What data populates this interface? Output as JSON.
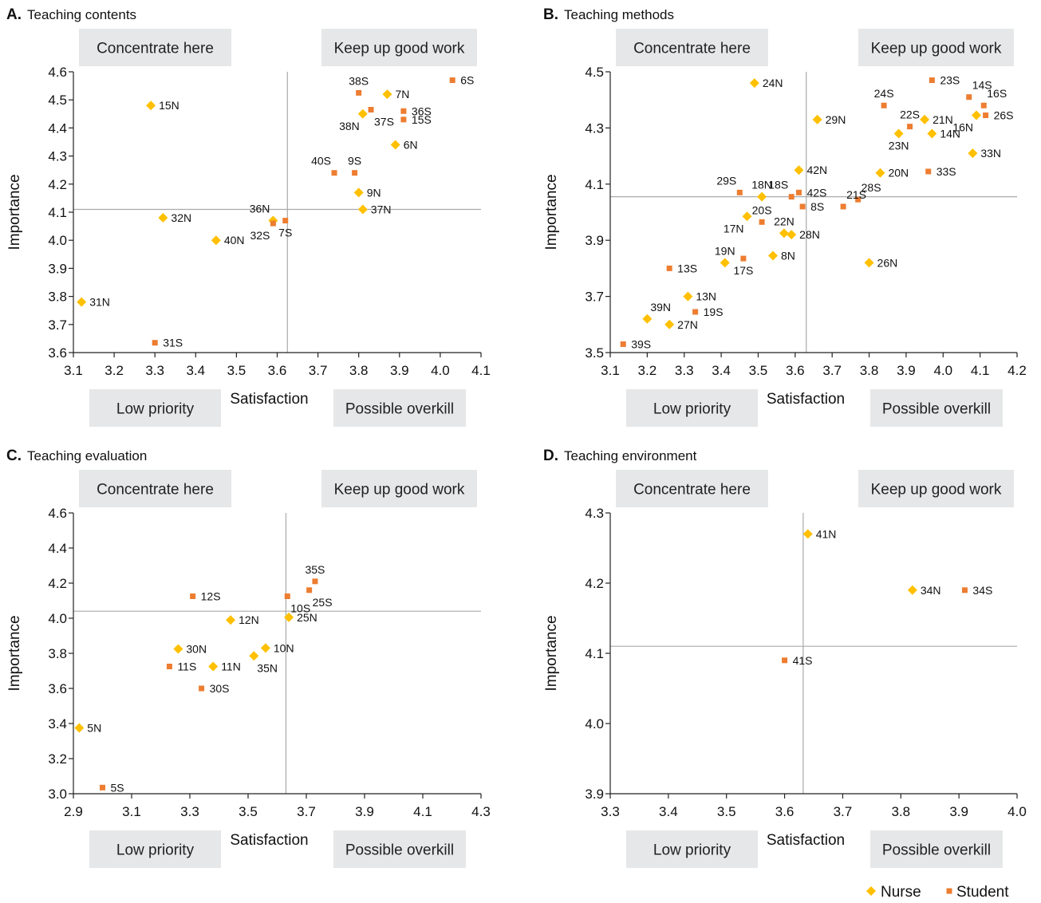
{
  "colors": {
    "nurse": "#FFC000",
    "student": "#ED7D31",
    "quad_bg": "#E6E7E8",
    "guide": "#AAAAAA",
    "axis": "#222222"
  },
  "quadrant_labels": {
    "concentrate": "Concentrate here",
    "keep": "Keep up good work",
    "low": "Low priority",
    "overkill": "Possible overkill"
  },
  "legend": [
    {
      "name": "Nurse",
      "marker": "diamond",
      "color": "#FFC000"
    },
    {
      "name": "Student",
      "marker": "square",
      "color": "#ED7D31"
    }
  ],
  "chart_data": [
    {
      "type": "scatter",
      "letter": "A.",
      "title": "Teaching contents",
      "xlabel": "Satisfaction",
      "ylabel": "Importance",
      "xlim": [
        3.1,
        4.1
      ],
      "ylim": [
        3.6,
        4.6
      ],
      "xticks": [
        "3.1",
        "3.2",
        "3.3",
        "3.4",
        "3.5",
        "3.6",
        "3.7",
        "3.8",
        "3.9",
        "4.0",
        "4.1"
      ],
      "yticks": [
        "3.6",
        "3.7",
        "3.8",
        "3.9",
        "4.0",
        "4.1",
        "4.2",
        "4.3",
        "4.4",
        "4.5",
        "4.6"
      ],
      "ref_x": 3.625,
      "ref_y": 4.11,
      "grid": false,
      "points": [
        {
          "label": "15N",
          "group": "Nurse",
          "x": 3.29,
          "y": 4.48,
          "lp": "r"
        },
        {
          "label": "32N",
          "group": "Nurse",
          "x": 3.32,
          "y": 4.08,
          "lp": "r"
        },
        {
          "label": "40N",
          "group": "Nurse",
          "x": 3.45,
          "y": 4.0,
          "lp": "r"
        },
        {
          "label": "31N",
          "group": "Nurse",
          "x": 3.12,
          "y": 3.78,
          "lp": "r"
        },
        {
          "label": "31S",
          "group": "Student",
          "x": 3.3,
          "y": 3.635,
          "lp": "r"
        },
        {
          "label": "36N",
          "group": "Nurse",
          "x": 3.59,
          "y": 4.07,
          "lp": "tl"
        },
        {
          "label": "32S",
          "group": "Student",
          "x": 3.59,
          "y": 4.06,
          "lp": "bl"
        },
        {
          "label": "7S",
          "group": "Student",
          "x": 3.62,
          "y": 4.07,
          "lp": "b"
        },
        {
          "label": "38S",
          "group": "Student",
          "x": 3.8,
          "y": 4.525,
          "lp": "t"
        },
        {
          "label": "7N",
          "group": "Nurse",
          "x": 3.87,
          "y": 4.52,
          "lp": "r"
        },
        {
          "label": "6S",
          "group": "Student",
          "x": 4.03,
          "y": 4.57,
          "lp": "r"
        },
        {
          "label": "37S",
          "group": "Student",
          "x": 3.83,
          "y": 4.465,
          "lp": "br"
        },
        {
          "label": "38N",
          "group": "Nurse",
          "x": 3.81,
          "y": 4.45,
          "lp": "bl"
        },
        {
          "label": "36S",
          "group": "Student",
          "x": 3.91,
          "y": 4.46,
          "lp": "r"
        },
        {
          "label": "15S",
          "group": "Student",
          "x": 3.91,
          "y": 4.43,
          "lp": "r"
        },
        {
          "label": "6N",
          "group": "Nurse",
          "x": 3.89,
          "y": 4.34,
          "lp": "r"
        },
        {
          "label": "40S",
          "group": "Student",
          "x": 3.74,
          "y": 4.24,
          "lp": "tl"
        },
        {
          "label": "9S",
          "group": "Student",
          "x": 3.79,
          "y": 4.24,
          "lp": "t"
        },
        {
          "label": "9N",
          "group": "Nurse",
          "x": 3.8,
          "y": 4.17,
          "lp": "r"
        },
        {
          "label": "37N",
          "group": "Nurse",
          "x": 3.81,
          "y": 4.11,
          "lp": "r"
        }
      ]
    },
    {
      "type": "scatter",
      "letter": "B.",
      "title": "Teaching methods",
      "xlabel": "Satisfaction",
      "ylabel": "Importance",
      "xlim": [
        3.1,
        4.2
      ],
      "ylim": [
        3.5,
        4.5
      ],
      "xticks": [
        "3.1",
        "3.2",
        "3.3",
        "3.4",
        "3.5",
        "3.6",
        "3.7",
        "3.8",
        "3.9",
        "4.0",
        "4.1",
        "4.2"
      ],
      "yticks": [
        "3.5",
        "3.7",
        "3.9",
        "4.1",
        "4.3",
        "4.5"
      ],
      "ref_x": 3.63,
      "ref_y": 4.055,
      "grid": false,
      "points": [
        {
          "label": "24N",
          "group": "Nurse",
          "x": 3.49,
          "y": 4.46,
          "lp": "r"
        },
        {
          "label": "29N",
          "group": "Nurse",
          "x": 3.66,
          "y": 4.33,
          "lp": "r"
        },
        {
          "label": "42N",
          "group": "Nurse",
          "x": 3.61,
          "y": 4.15,
          "lp": "r"
        },
        {
          "label": "29S",
          "group": "Student",
          "x": 3.45,
          "y": 4.07,
          "lp": "tl"
        },
        {
          "label": "18N",
          "group": "Nurse",
          "x": 3.51,
          "y": 4.055,
          "lp": "t"
        },
        {
          "label": "18S",
          "group": "Student",
          "x": 3.59,
          "y": 4.055,
          "lp": "tl"
        },
        {
          "label": "42S",
          "group": "Student",
          "x": 3.61,
          "y": 4.07,
          "lp": "r"
        },
        {
          "label": "8S",
          "group": "Student",
          "x": 3.62,
          "y": 4.02,
          "lp": "r"
        },
        {
          "label": "17N",
          "group": "Nurse",
          "x": 3.47,
          "y": 3.985,
          "lp": "bl"
        },
        {
          "label": "20S",
          "group": "Student",
          "x": 3.51,
          "y": 3.965,
          "lp": "t"
        },
        {
          "label": "22N",
          "group": "Nurse",
          "x": 3.57,
          "y": 3.925,
          "lp": "t"
        },
        {
          "label": "28N",
          "group": "Nurse",
          "x": 3.59,
          "y": 3.92,
          "lp": "r"
        },
        {
          "label": "19N",
          "group": "Nurse",
          "x": 3.41,
          "y": 3.82,
          "lp": "t"
        },
        {
          "label": "17S",
          "group": "Student",
          "x": 3.46,
          "y": 3.835,
          "lp": "b"
        },
        {
          "label": "8N",
          "group": "Nurse",
          "x": 3.54,
          "y": 3.845,
          "lp": "r"
        },
        {
          "label": "13S",
          "group": "Student",
          "x": 3.26,
          "y": 3.8,
          "lp": "r"
        },
        {
          "label": "13N",
          "group": "Nurse",
          "x": 3.31,
          "y": 3.7,
          "lp": "r"
        },
        {
          "label": "19S",
          "group": "Student",
          "x": 3.33,
          "y": 3.645,
          "lp": "r"
        },
        {
          "label": "39N",
          "group": "Nurse",
          "x": 3.2,
          "y": 3.62,
          "lp": "tr"
        },
        {
          "label": "27N",
          "group": "Nurse",
          "x": 3.26,
          "y": 3.6,
          "lp": "r"
        },
        {
          "label": "39S",
          "group": "Student",
          "x": 3.135,
          "y": 3.53,
          "lp": "r"
        },
        {
          "label": "23S",
          "group": "Student",
          "x": 3.97,
          "y": 4.47,
          "lp": "r"
        },
        {
          "label": "14S",
          "group": "Student",
          "x": 4.07,
          "y": 4.41,
          "lp": "tr"
        },
        {
          "label": "16S",
          "group": "Student",
          "x": 4.11,
          "y": 4.38,
          "lp": "tr"
        },
        {
          "label": "24S",
          "group": "Student",
          "x": 3.84,
          "y": 4.38,
          "lp": "t"
        },
        {
          "label": "26S",
          "group": "Student",
          "x": 4.115,
          "y": 4.345,
          "lp": "r"
        },
        {
          "label": "21N",
          "group": "Nurse",
          "x": 3.95,
          "y": 4.33,
          "lp": "r"
        },
        {
          "label": "22S",
          "group": "Student",
          "x": 3.91,
          "y": 4.305,
          "lp": "t"
        },
        {
          "label": "16N",
          "group": "Nurse",
          "x": 4.09,
          "y": 4.345,
          "lp": "bl"
        },
        {
          "label": "23N",
          "group": "Nurse",
          "x": 3.88,
          "y": 4.28,
          "lp": "b"
        },
        {
          "label": "14N",
          "group": "Nurse",
          "x": 3.97,
          "y": 4.28,
          "lp": "r"
        },
        {
          "label": "33N",
          "group": "Nurse",
          "x": 4.08,
          "y": 4.21,
          "lp": "r"
        },
        {
          "label": "33S",
          "group": "Student",
          "x": 3.96,
          "y": 4.145,
          "lp": "r"
        },
        {
          "label": "20N",
          "group": "Nurse",
          "x": 3.83,
          "y": 4.14,
          "lp": "r"
        },
        {
          "label": "28S",
          "group": "Student",
          "x": 3.77,
          "y": 4.045,
          "lp": "tr"
        },
        {
          "label": "21S",
          "group": "Student",
          "x": 3.73,
          "y": 4.02,
          "lp": "tr"
        },
        {
          "label": "26N",
          "group": "Nurse",
          "x": 3.8,
          "y": 3.82,
          "lp": "r"
        }
      ]
    },
    {
      "type": "scatter",
      "letter": "C.",
      "title": "Teaching evaluation",
      "xlabel": "Satisfaction",
      "ylabel": "Importance",
      "xlim": [
        2.9,
        4.3
      ],
      "ylim": [
        3.0,
        4.6
      ],
      "xticks": [
        "2.9",
        "3.1",
        "3.3",
        "3.5",
        "3.7",
        "3.9",
        "4.1",
        "4.3"
      ],
      "yticks": [
        "3.0",
        "3.2",
        "3.4",
        "3.6",
        "3.8",
        "4.0",
        "4.2",
        "4.4",
        "4.6"
      ],
      "ref_x": 3.63,
      "ref_y": 4.04,
      "grid": false,
      "points": [
        {
          "label": "12S",
          "group": "Student",
          "x": 3.31,
          "y": 4.125,
          "lp": "r"
        },
        {
          "label": "12N",
          "group": "Nurse",
          "x": 3.44,
          "y": 3.99,
          "lp": "r"
        },
        {
          "label": "30N",
          "group": "Nurse",
          "x": 3.26,
          "y": 3.825,
          "lp": "r"
        },
        {
          "label": "11S",
          "group": "Student",
          "x": 3.23,
          "y": 3.725,
          "lp": "r"
        },
        {
          "label": "11N",
          "group": "Nurse",
          "x": 3.38,
          "y": 3.725,
          "lp": "r"
        },
        {
          "label": "30S",
          "group": "Student",
          "x": 3.34,
          "y": 3.6,
          "lp": "r"
        },
        {
          "label": "10N",
          "group": "Nurse",
          "x": 3.56,
          "y": 3.83,
          "lp": "r"
        },
        {
          "label": "35N",
          "group": "Nurse",
          "x": 3.52,
          "y": 3.785,
          "lp": "br"
        },
        {
          "label": "5N",
          "group": "Nurse",
          "x": 2.92,
          "y": 3.375,
          "lp": "r"
        },
        {
          "label": "5S",
          "group": "Student",
          "x": 3.0,
          "y": 3.035,
          "lp": "r"
        },
        {
          "label": "35S",
          "group": "Student",
          "x": 3.73,
          "y": 4.21,
          "lp": "t"
        },
        {
          "label": "10S",
          "group": "Student",
          "x": 3.635,
          "y": 4.125,
          "lp": "br"
        },
        {
          "label": "25S",
          "group": "Student",
          "x": 3.71,
          "y": 4.16,
          "lp": "br"
        },
        {
          "label": "25N",
          "group": "Nurse",
          "x": 3.64,
          "y": 4.005,
          "lp": "r"
        }
      ]
    },
    {
      "type": "scatter",
      "letter": "D.",
      "title": "Teaching environment",
      "xlabel": "Satisfaction",
      "ylabel": "Importance",
      "xlim": [
        3.3,
        4.0
      ],
      "ylim": [
        3.9,
        4.3
      ],
      "xticks": [
        "3.3",
        "3.4",
        "3.5",
        "3.6",
        "3.7",
        "3.8",
        "3.9",
        "4.0"
      ],
      "yticks": [
        "3.9",
        "4.0",
        "4.1",
        "4.2",
        "4.3"
      ],
      "ref_x": 3.632,
      "ref_y": 4.11,
      "grid": false,
      "points": [
        {
          "label": "41N",
          "group": "Nurse",
          "x": 3.64,
          "y": 4.27,
          "lp": "r"
        },
        {
          "label": "34N",
          "group": "Nurse",
          "x": 3.82,
          "y": 4.19,
          "lp": "r"
        },
        {
          "label": "34S",
          "group": "Student",
          "x": 3.91,
          "y": 4.19,
          "lp": "r"
        },
        {
          "label": "41S",
          "group": "Student",
          "x": 3.6,
          "y": 4.09,
          "lp": "r"
        }
      ]
    }
  ]
}
